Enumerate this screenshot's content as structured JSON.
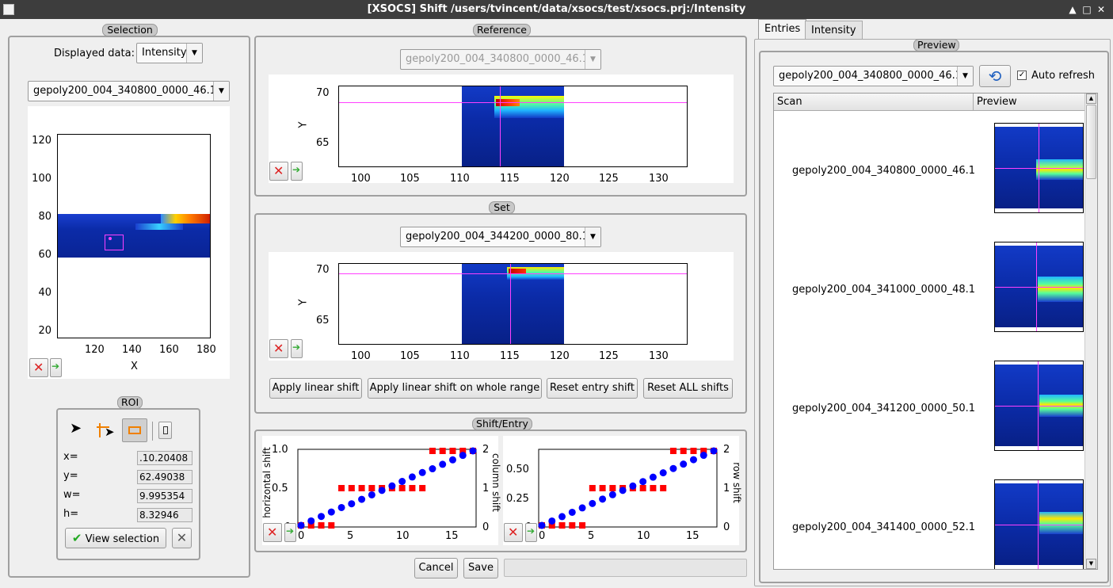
{
  "window": {
    "title": "[XSOCS] Shift /users/tvincent/data/xsocs/test/xsocs.prj:/Intensity",
    "btn_up": "▲",
    "btn_max": "□",
    "btn_close": "✕"
  },
  "selection": {
    "title": "Selection",
    "displayed_label": "Displayed data:",
    "displayed_value": "Intensity",
    "entry_value": "gepoly200_004_340800_0000_46.1",
    "plot": {
      "xlabel": "X",
      "xticks": [
        "120",
        "140",
        "160",
        "180"
      ],
      "yticks": [
        "120",
        "100",
        "80",
        "60",
        "40",
        "20"
      ]
    }
  },
  "roi": {
    "title": "ROI",
    "x_label": "x=",
    "x_value": ".10.20408",
    "y_label": "y=",
    "y_value": "62.49038",
    "w_label": "w=",
    "w_value": "9.995354",
    "h_label": "h=",
    "h_value": "8.32946",
    "view_button": "View selection",
    "check_icon": "✔",
    "clear_icon": "✕"
  },
  "reference": {
    "title": "Reference",
    "entry_value": "gepoly200_004_340800_0000_46.1",
    "plot": {
      "ylabel": "Y",
      "yticks": [
        "70",
        "65"
      ],
      "xticks": [
        "100",
        "105",
        "110",
        "115",
        "120",
        "125",
        "130"
      ]
    }
  },
  "set": {
    "title": "Set",
    "entry_value": "gepoly200_004_344200_0000_80.1",
    "plot": {
      "ylabel": "Y",
      "yticks": [
        "70",
        "65"
      ],
      "xticks": [
        "100",
        "105",
        "110",
        "115",
        "120",
        "125",
        "130"
      ]
    },
    "btn_linear": "Apply linear shift",
    "btn_linear_whole": "Apply linear shift on whole range",
    "btn_reset_entry": "Reset entry shift",
    "btn_reset_all": "Reset ALL shifts"
  },
  "shift_entry": {
    "title": "Shift/Entry",
    "left_plot": {
      "ylabel": "horizontal shift",
      "y2label": "column shift",
      "yticks": [
        "1.0",
        "0.5",
        "0"
      ],
      "y2ticks": [
        "2",
        "1",
        "0"
      ],
      "xticks": [
        "0",
        "5",
        "10",
        "15"
      ]
    },
    "right_plot": {
      "ylabel": "",
      "y2label": "row shift",
      "yticks": [
        "0.50",
        "0.25",
        "0"
      ],
      "y2ticks": [
        "2",
        "1",
        "0"
      ],
      "xticks": [
        "0",
        "5",
        "10",
        "15"
      ]
    }
  },
  "chart_data": [
    {
      "type": "scatter",
      "title": "",
      "xlabel": "",
      "ylabel": "horizontal shift",
      "y2label": "column shift",
      "ylim": [
        0,
        1.0
      ],
      "y2lim": [
        0,
        2
      ],
      "xlim": [
        0,
        17
      ],
      "series": [
        {
          "name": "",
          "color": "#ff0000",
          "marker": "square",
          "axis": "right",
          "x": [
            0,
            1,
            2,
            3,
            4,
            5,
            6,
            7,
            8,
            9,
            10,
            11,
            12,
            13,
            14,
            15,
            16,
            17
          ],
          "y": [
            0,
            0,
            0,
            0,
            1,
            1,
            1,
            1,
            1,
            1,
            1,
            1,
            1,
            2,
            2,
            2,
            2,
            2
          ]
        },
        {
          "name": "",
          "color": "#0000ff",
          "marker": "circle",
          "axis": "left",
          "x": [
            0,
            1,
            2,
            3,
            4,
            5,
            6,
            7,
            8,
            9,
            10,
            11,
            12,
            13,
            14,
            15,
            16,
            17
          ],
          "y": [
            0,
            0.06,
            0.12,
            0.18,
            0.24,
            0.29,
            0.35,
            0.41,
            0.47,
            0.53,
            0.59,
            0.65,
            0.71,
            0.76,
            0.82,
            0.88,
            0.94,
            1.0
          ]
        }
      ]
    },
    {
      "type": "scatter",
      "title": "",
      "xlabel": "",
      "ylabel": "",
      "y2label": "row shift",
      "ylim": [
        0,
        0.66
      ],
      "y2lim": [
        0,
        2
      ],
      "xlim": [
        0,
        17
      ],
      "series": [
        {
          "name": "",
          "color": "#ff0000",
          "marker": "square",
          "axis": "right",
          "x": [
            0,
            1,
            2,
            3,
            4,
            5,
            6,
            7,
            8,
            9,
            10,
            11,
            12,
            13,
            14,
            15,
            16,
            17
          ],
          "y": [
            0,
            0,
            0,
            0,
            0,
            1,
            1,
            1,
            1,
            1,
            1,
            1,
            1,
            2,
            2,
            2,
            2,
            2
          ]
        },
        {
          "name": "",
          "color": "#0000ff",
          "marker": "circle",
          "axis": "left",
          "x": [
            0,
            1,
            2,
            3,
            4,
            5,
            6,
            7,
            8,
            9,
            10,
            11,
            12,
            13,
            14,
            15,
            16,
            17
          ],
          "y": [
            0,
            0.039,
            0.078,
            0.116,
            0.155,
            0.194,
            0.233,
            0.272,
            0.31,
            0.349,
            0.388,
            0.427,
            0.466,
            0.504,
            0.543,
            0.582,
            0.621,
            0.66
          ]
        }
      ]
    }
  ],
  "bottom": {
    "cancel": "Cancel",
    "save": "Save",
    "progress": 0
  },
  "right": {
    "tab_entries": "Entries",
    "tab_intensity": "Intensity",
    "preview_title": "Preview",
    "entry_value": "gepoly200_004_340800_0000_46.1",
    "auto_refresh_label": "Auto refresh",
    "auto_refresh_checked": "✓",
    "col_scan": "Scan",
    "col_preview": "Preview",
    "rows": [
      {
        "name": "gepoly200_004_340800_0000_46.1"
      },
      {
        "name": "gepoly200_004_341000_0000_48.1"
      },
      {
        "name": "gepoly200_004_341200_0000_50.1"
      },
      {
        "name": "gepoly200_004_341400_0000_52.1"
      }
    ]
  },
  "colors": {
    "accent_magenta": "#ff40ff",
    "heat_low": "#0b2ba8",
    "marker_red": "#ff0000",
    "marker_blue": "#0000ff"
  }
}
